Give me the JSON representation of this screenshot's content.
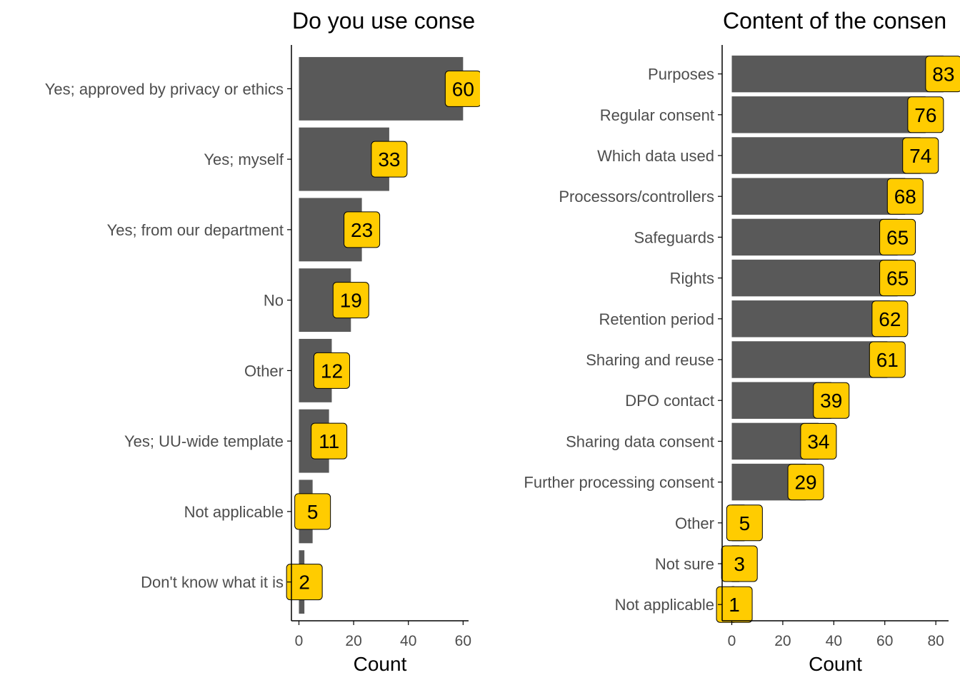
{
  "colors": {
    "bar": "#595959",
    "label_fill": "#FFCC00",
    "axis": "#000000",
    "tick_text": "#4d4d4d"
  },
  "chart_data": [
    {
      "type": "bar",
      "orientation": "horizontal",
      "title": "Do you use conse",
      "xlabel": "Count",
      "ylabel": "",
      "xlim": [
        0,
        62
      ],
      "xticks": [
        0,
        20,
        40,
        60
      ],
      "grid": false,
      "legend": "none",
      "categories": [
        "Yes; approved by privacy or ethics",
        "Yes; myself",
        "Yes; from our department",
        "No",
        "Other",
        "Yes; UU-wide template",
        "Not applicable",
        "Don't know what it is"
      ],
      "values": [
        60,
        33,
        23,
        19,
        12,
        11,
        5,
        2
      ]
    },
    {
      "type": "bar",
      "orientation": "horizontal",
      "title": "Content of the consen",
      "xlabel": "Count",
      "ylabel": "",
      "xlim": [
        0,
        85
      ],
      "xticks": [
        0,
        20,
        40,
        60,
        80
      ],
      "grid": false,
      "legend": "none",
      "categories": [
        "Purposes",
        "Regular consent",
        "Which data used",
        "Processors/controllers",
        "Safeguards",
        "Rights",
        "Retention period",
        "Sharing and reuse",
        "DPO contact",
        "Sharing data consent",
        "Further processing consent",
        "Other",
        "Not sure",
        "Not applicable"
      ],
      "values": [
        83,
        76,
        74,
        68,
        65,
        65,
        62,
        61,
        39,
        34,
        29,
        5,
        3,
        1
      ]
    }
  ]
}
